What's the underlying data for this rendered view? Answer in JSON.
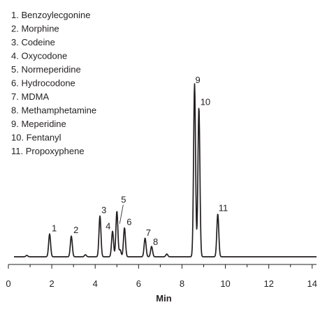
{
  "chart_data": {
    "type": "line",
    "title": "",
    "xlabel": "Min",
    "ylabel": "",
    "xlim": [
      0,
      14.2
    ],
    "ylim": [
      0,
      100
    ],
    "x_ticks": [
      0,
      2,
      4,
      6,
      8,
      10,
      12,
      14
    ],
    "grid": false,
    "legend_position": "top-left",
    "legend": [
      "1. Benzoylecgonine",
      "2. Morphine",
      "3. Codeine",
      "4. Oxycodone",
      "5. Normeperidine",
      "6. Hydrocodone",
      "7. MDMA",
      "8. Methamphetamine",
      "9. Meperidine",
      "10. Fentanyl",
      "11. Propoxyphene"
    ],
    "peaks": [
      {
        "label": "1",
        "x": 1.9,
        "height": 13.2
      },
      {
        "label": "2",
        "x": 2.9,
        "height": 12.0
      },
      {
        "label": "3",
        "x": 4.22,
        "height": 23.6
      },
      {
        "label": "4",
        "x": 4.8,
        "height": 14.8
      },
      {
        "label": "5",
        "x": 5.0,
        "height": 26.4
      },
      {
        "label": "6",
        "x": 5.35,
        "height": 16.8
      },
      {
        "label": "7",
        "x": 6.3,
        "height": 10.8
      },
      {
        "label": "8",
        "x": 6.6,
        "height": 6.0
      },
      {
        "label": "9",
        "x": 8.58,
        "height": 100
      },
      {
        "label": "10",
        "x": 8.78,
        "height": 86.4
      },
      {
        "label": "11",
        "x": 9.65,
        "height": 24.8
      }
    ],
    "minor_peaks": [
      {
        "x": 0.85,
        "height": 0.8
      },
      {
        "x": 3.55,
        "height": 1.2
      },
      {
        "x": 5.15,
        "height": 4.0
      },
      {
        "x": 7.3,
        "height": 1.6
      }
    ],
    "line_color": "#231f20"
  }
}
